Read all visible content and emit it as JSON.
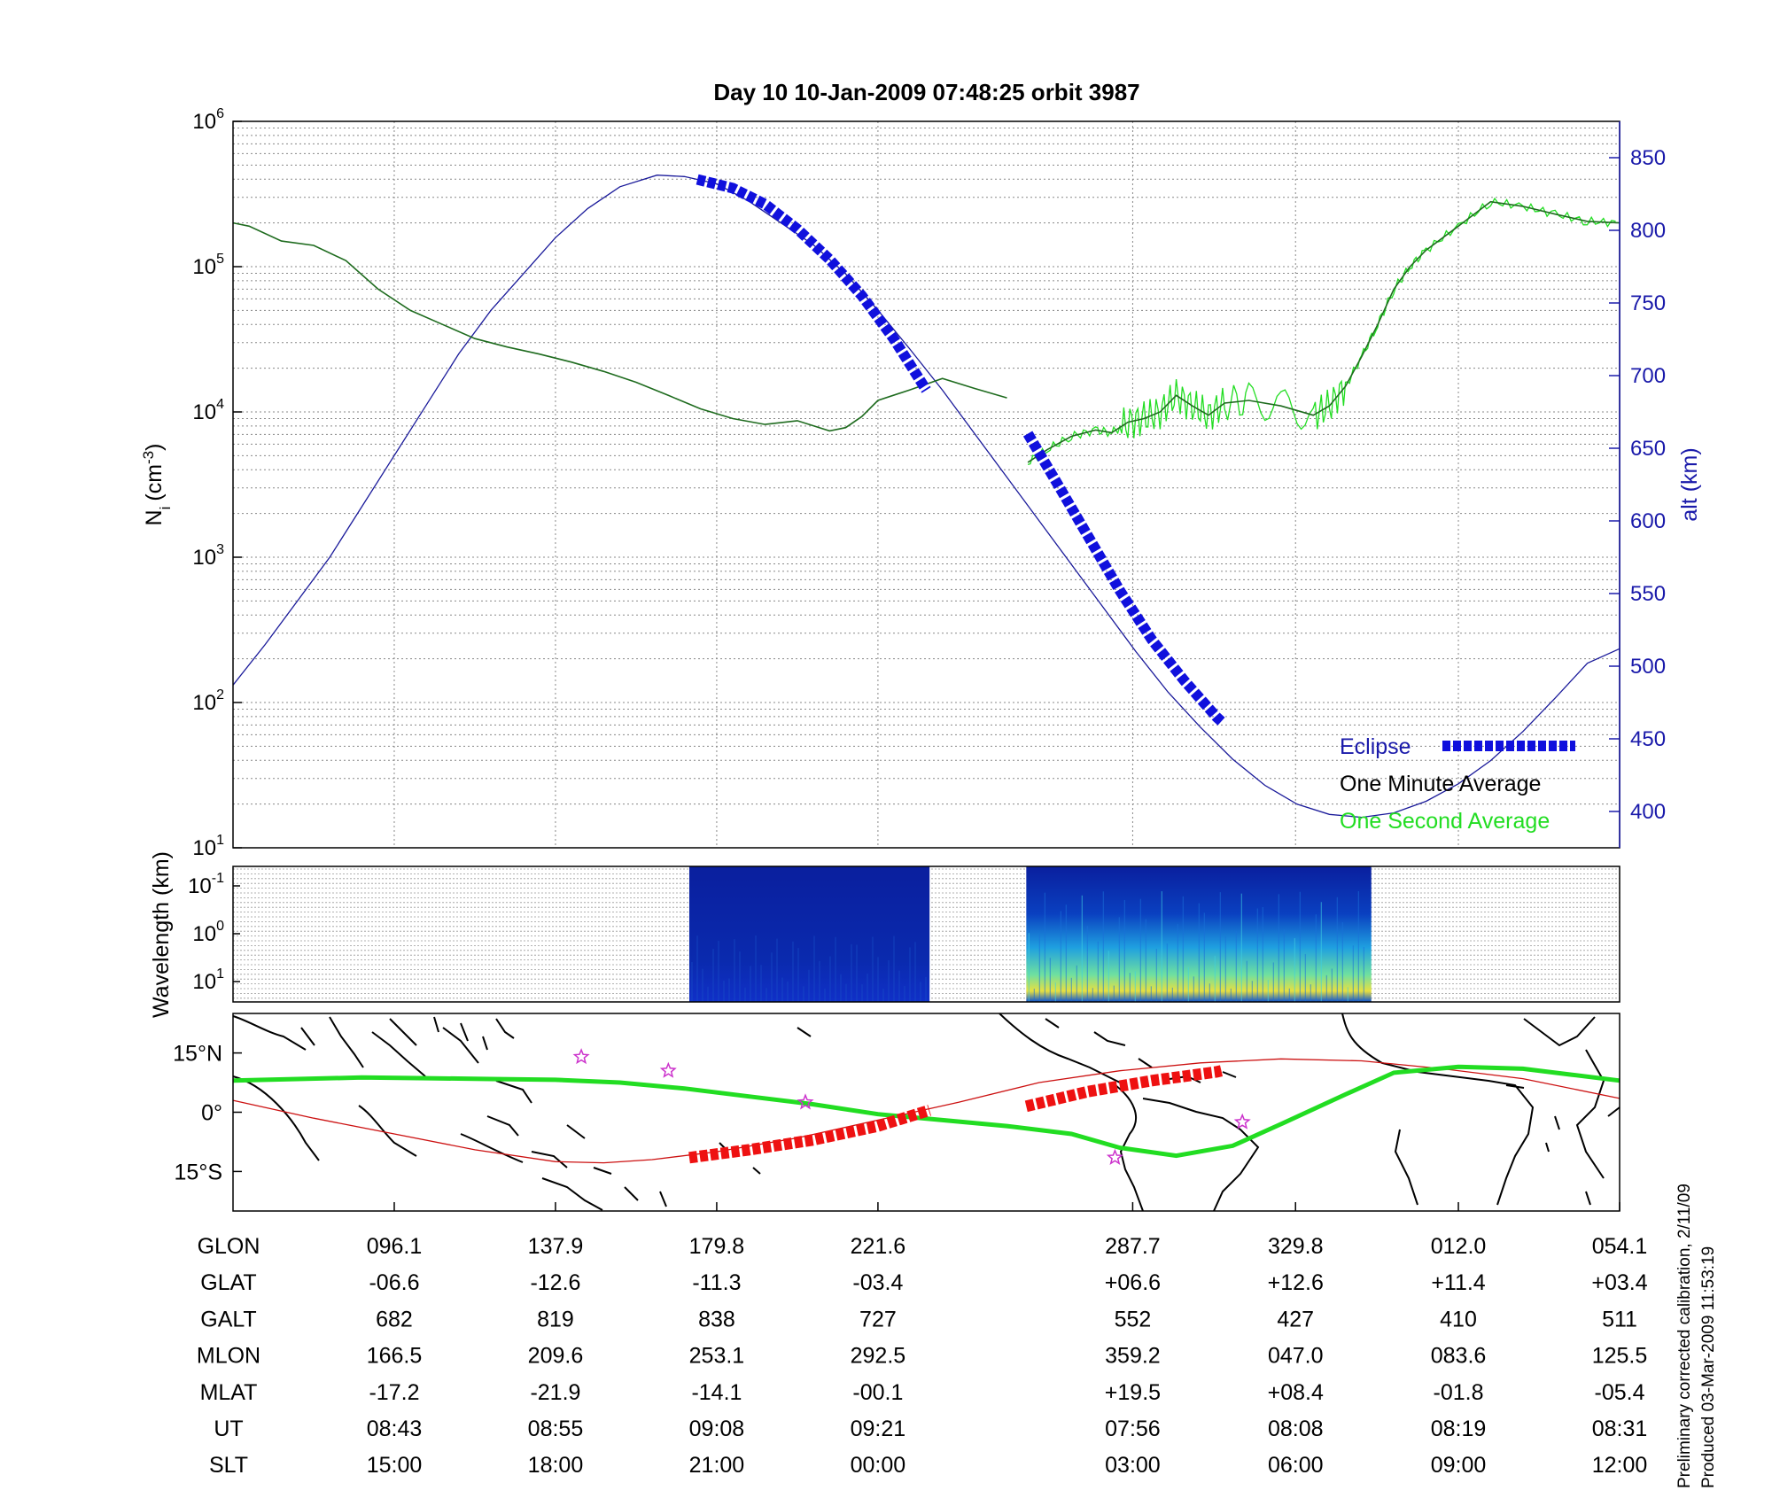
{
  "figure": {
    "title": "Day 10  10-Jan-2009 07:48:25   orbit 3987",
    "side_note_1": "Preliminary corrected calibration, 2/11/09",
    "side_note_2": "Produced 03-Mar-2009 11:53:19"
  },
  "colors": {
    "axis_right": "#1a1aaa",
    "altitude": "#1a1a9a",
    "eclipse": "#1010dd",
    "density_minute": "#1e6b1e",
    "density_second": "#22dd22",
    "orbit_track": "#cc1111",
    "mag_equator": "#22dd22",
    "eclipse_map": "#ee1111",
    "star": "#cc33cc"
  },
  "chart_data": [
    {
      "type": "line",
      "panel": "density",
      "ylabel_main": "N",
      "ylabel_sub": "i",
      "ylabel_unit": "(cm",
      "ylabel_exp": "-3",
      "ylabel_close": ")",
      "yscale": "log",
      "ylim": [
        10,
        1000000
      ],
      "yticks": [
        {
          "base": "10",
          "exp": "1",
          "value": 10
        },
        {
          "base": "10",
          "exp": "2",
          "value": 100
        },
        {
          "base": "10",
          "exp": "3",
          "value": 1000
        },
        {
          "base": "10",
          "exp": "4",
          "value": 10000
        },
        {
          "base": "10",
          "exp": "5",
          "value": 100000
        },
        {
          "base": "10",
          "exp": "6",
          "value": 1000000
        }
      ],
      "y2label": "alt (km)",
      "y2lim": [
        375,
        875
      ],
      "y2ticks": [
        "400",
        "450",
        "500",
        "550",
        "600",
        "650",
        "700",
        "750",
        "800",
        "850"
      ],
      "xlim": [
        0,
        8.6
      ],
      "grid": true,
      "legend": {
        "position": "bottom-right",
        "entries": [
          "Eclipse",
          "One Minute Average",
          "One Second Average"
        ]
      },
      "series": [
        {
          "name": "One Minute Average",
          "x": [
            0,
            0.1,
            0.3,
            0.5,
            0.7,
            0.9,
            1.1,
            1.3,
            1.5,
            1.7,
            1.9,
            2.1,
            2.3,
            2.5,
            2.7,
            2.9,
            3.1,
            3.3,
            3.5,
            3.7,
            3.8,
            3.9,
            4.0,
            4.2,
            4.4,
            4.6,
            4.8
          ],
          "y": [
            200000,
            190000,
            150000,
            140000,
            110000,
            70000,
            50000,
            40000,
            32000,
            28000,
            25000,
            22000,
            19000,
            16000,
            13000,
            10500,
            9000,
            8200,
            8700,
            7400,
            7800,
            9300,
            12000,
            14200,
            17000,
            14500,
            12500
          ]
        },
        {
          "name": "One Minute Average",
          "x": [
            4.93,
            5.05,
            5.2,
            5.35,
            5.45,
            5.55,
            5.65,
            5.75,
            5.85,
            5.95,
            6.05,
            6.15,
            6.3,
            6.5,
            6.7,
            6.8,
            6.9,
            7.0,
            7.1,
            7.2,
            7.3,
            7.4,
            7.6,
            7.8,
            8.0,
            8.2,
            8.4,
            8.6
          ],
          "y": [
            4500,
            5500,
            6800,
            7500,
            7200,
            8500,
            9000,
            10000,
            13000,
            11000,
            9500,
            11500,
            12000,
            11000,
            9500,
            11000,
            15000,
            24000,
            40000,
            70000,
            100000,
            130000,
            190000,
            280000,
            260000,
            230000,
            205000,
            200000
          ]
        }
      ],
      "altitude": {
        "x": [
          0,
          0.2,
          0.4,
          0.6,
          0.8,
          1.0,
          1.2,
          1.4,
          1.6,
          1.8,
          2.0,
          2.2,
          2.4,
          2.63,
          2.8,
          3.0,
          3.2,
          3.4,
          3.6,
          3.8,
          4.0,
          4.2,
          4.4,
          4.6,
          4.8,
          5.0,
          5.2,
          5.4,
          5.6,
          5.8,
          6.0,
          6.2,
          6.4,
          6.6,
          6.8,
          7.0,
          7.2,
          7.4,
          7.6,
          7.8,
          8.0,
          8.2,
          8.4,
          8.6
        ],
        "y": [
          487,
          515,
          545,
          575,
          610,
          645,
          680,
          715,
          745,
          770,
          795,
          815,
          830,
          838,
          837,
          832,
          820,
          805,
          790,
          770,
          745,
          718,
          690,
          660,
          630,
          600,
          570,
          540,
          510,
          482,
          458,
          436,
          418,
          405,
          398,
          396,
          399,
          407,
          419,
          435,
          455,
          478,
          502,
          512
        ]
      },
      "eclipse_segments": [
        {
          "x": [
            2.88,
            3.1,
            3.3,
            3.5,
            3.7,
            3.9,
            4.1,
            4.3
          ],
          "y": [
            835,
            829,
            818,
            801,
            780,
            755,
            725,
            690
          ]
        },
        {
          "x": [
            4.93,
            5.1,
            5.3,
            5.5,
            5.7,
            5.9,
            6.1,
            6.13
          ],
          "y": [
            660,
            628,
            590,
            552,
            518,
            490,
            465,
            462
          ]
        }
      ]
    },
    {
      "type": "heatmap",
      "panel": "spectrogram",
      "ylabel": "Wavelength (km)",
      "yticks": [
        {
          "base": "10",
          "exp": "-1"
        },
        {
          "base": "10",
          "exp": "0"
        },
        {
          "base": "10",
          "exp": "1"
        }
      ],
      "data_blocks_x": [
        [
          2.83,
          4.32
        ],
        [
          4.92,
          7.06
        ]
      ]
    },
    {
      "type": "map",
      "panel": "ground-track",
      "lat_ticks": [
        "15°N",
        "0°",
        "15°S"
      ],
      "ylim": [
        -25,
        25
      ],
      "orbit_track": {
        "x": [
          0,
          0.5,
          1.0,
          1.5,
          2.0,
          2.3,
          2.6,
          3.0,
          3.5,
          4.0,
          4.5,
          5.0,
          5.5,
          6.0,
          6.5,
          7.0,
          7.5,
          8.0,
          8.6
        ],
        "lat": [
          3,
          -1.5,
          -5.5,
          -9.5,
          -12.5,
          -12.8,
          -12,
          -10,
          -6.5,
          -2,
          2.5,
          7.5,
          10.5,
          12.5,
          13.5,
          13,
          11,
          8.5,
          3.5
        ]
      },
      "mag_equator": {
        "x": [
          0,
          0.4,
          0.8,
          1.2,
          1.6,
          2.0,
          2.4,
          2.8,
          3.2,
          3.6,
          4.0,
          4.4,
          4.8,
          5.2,
          5.5,
          5.85,
          6.2,
          6.5,
          6.9,
          7.2,
          7.6,
          8.0,
          8.3,
          8.6
        ],
        "lat": [
          8,
          8.4,
          8.8,
          8.6,
          8.4,
          8.2,
          7.5,
          6,
          4,
          2,
          -0.5,
          -2,
          -3.5,
          -5.5,
          -9,
          -11,
          -8.5,
          -3,
          4.5,
          10,
          11.5,
          11,
          9.5,
          8
        ]
      },
      "eclipse_track": [
        {
          "x": [
            2.83,
            3.2,
            3.6,
            4.0,
            4.32
          ],
          "lat": [
            -11.5,
            -9.5,
            -7,
            -3.5,
            0.5
          ]
        },
        {
          "x": [
            4.92,
            5.3,
            5.7,
            6.1,
            6.13
          ],
          "lat": [
            1.5,
            5.2,
            8,
            10.2,
            10.5
          ]
        }
      ],
      "stars": [
        {
          "x": 2.16,
          "lat": 14
        },
        {
          "x": 2.7,
          "lat": 10.5
        },
        {
          "x": 3.55,
          "lat": 2.5
        },
        {
          "x": 5.47,
          "lat": -11.5
        },
        {
          "x": 6.26,
          "lat": -2.5
        }
      ]
    }
  ],
  "table": {
    "row_labels": [
      "GLON",
      "GLAT",
      "GALT",
      "MLON",
      "MLAT",
      "UT",
      "SLT"
    ],
    "columns": [
      {
        "x": 1,
        "values": [
          "096.1",
          "-06.6",
          "682",
          "166.5",
          "-17.2",
          "08:43",
          "15:00"
        ]
      },
      {
        "x": 2,
        "values": [
          "137.9",
          "-12.6",
          "819",
          "209.6",
          "-21.9",
          "08:55",
          "18:00"
        ]
      },
      {
        "x": 3,
        "values": [
          "179.8",
          "-11.3",
          "838",
          "253.1",
          "-14.1",
          "09:08",
          "21:00"
        ]
      },
      {
        "x": 4,
        "values": [
          "221.6",
          "-03.4",
          "727",
          "292.5",
          "-00.1",
          "09:21",
          "00:00"
        ]
      },
      {
        "x": 5.58,
        "values": [
          "287.7",
          "+06.6",
          "552",
          "359.2",
          "+19.5",
          "07:56",
          "03:00"
        ]
      },
      {
        "x": 6.59,
        "values": [
          "329.8",
          "+12.6",
          "427",
          "047.0",
          "+08.4",
          "08:08",
          "06:00"
        ]
      },
      {
        "x": 7.6,
        "values": [
          "012.0",
          "+11.4",
          "410",
          "083.6",
          "-01.8",
          "08:19",
          "09:00"
        ]
      },
      {
        "x": 8.6,
        "values": [
          "054.1",
          "+03.4",
          "511",
          "125.5",
          "-05.4",
          "08:31",
          "12:00"
        ]
      }
    ]
  }
}
